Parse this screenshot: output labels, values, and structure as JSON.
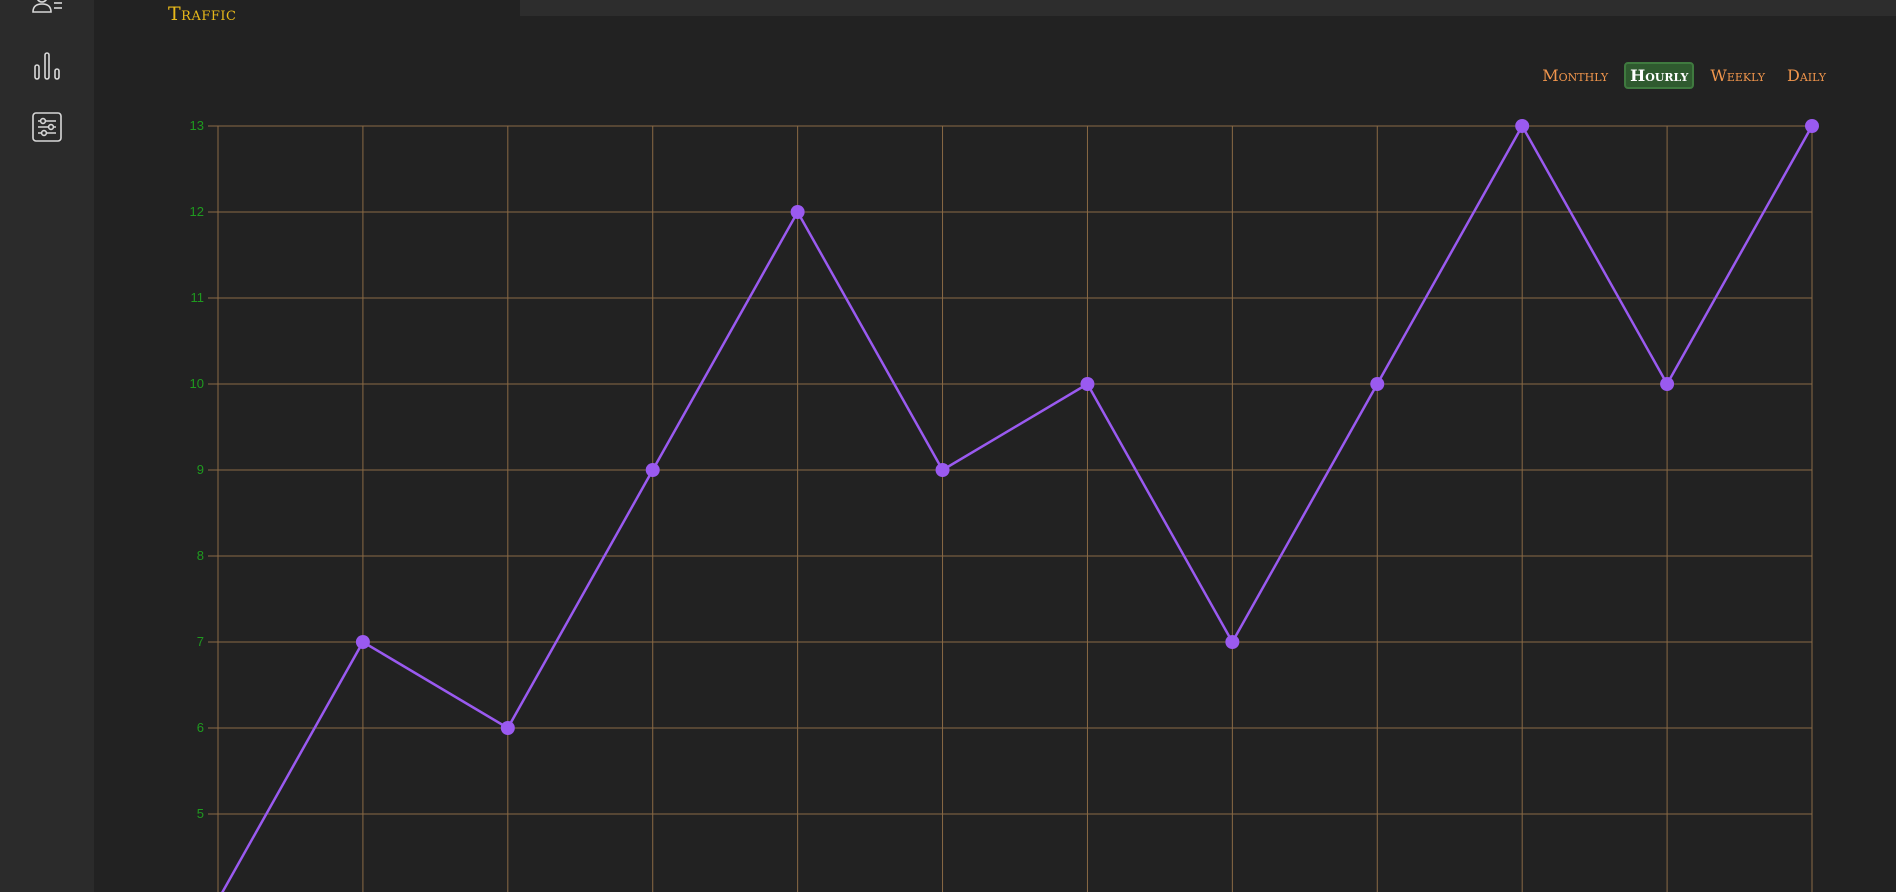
{
  "section": {
    "title": "Traffic"
  },
  "sidebar": {
    "icons": [
      "users-list-icon",
      "bar-chart-icon",
      "sliders-icon"
    ]
  },
  "period_tabs": [
    {
      "label": "Monthly",
      "active": false
    },
    {
      "label": "Hourly",
      "active": true
    },
    {
      "label": "Weekly",
      "active": false
    },
    {
      "label": "Daily",
      "active": false
    }
  ],
  "colors": {
    "background": "#222222",
    "sidebar": "#2b2b2b",
    "grid": "#8a6a45",
    "line": "#9a5af0",
    "tick_labels": "#1f9a1f",
    "title": "#e8b91a",
    "tab_text": "#f0954c",
    "tab_active_bg": "#2f5a2f"
  },
  "chart_data": {
    "type": "line",
    "title": "",
    "xlabel": "",
    "ylabel": "",
    "ylim": [
      4,
      13
    ],
    "yticks": [
      5,
      6,
      7,
      8,
      9,
      10,
      11,
      12,
      13
    ],
    "grid": true,
    "x_points": 12,
    "series": [
      {
        "values": [
          4,
          7,
          6,
          9,
          12,
          9,
          10,
          7,
          10,
          13,
          10,
          13
        ]
      }
    ]
  }
}
